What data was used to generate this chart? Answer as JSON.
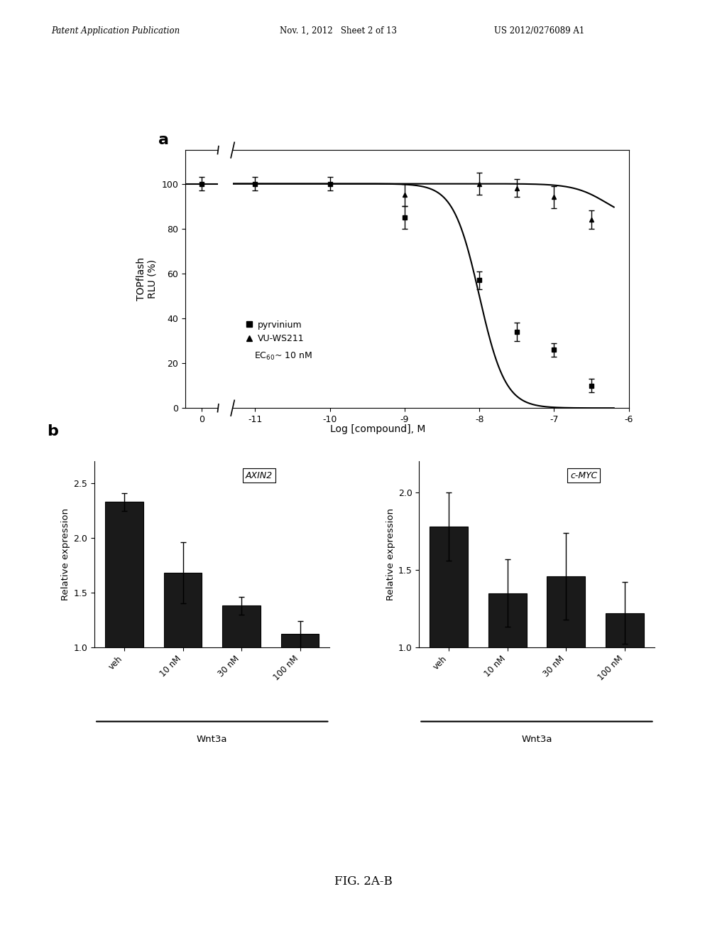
{
  "header_left": "Patent Application Publication",
  "header_mid": "Nov. 1, 2012   Sheet 2 of 13",
  "header_right": "US 2012/0276089 A1",
  "footer": "FIG. 2A-B",
  "panel_a_label": "a",
  "panel_b_label": "b",
  "pyrvinium_x": [
    -11,
    -10,
    -9,
    -8,
    -7.5,
    -7,
    -6.5
  ],
  "pyrvinium_y": [
    100,
    100,
    85,
    57,
    34,
    26,
    10
  ],
  "pyrvinium_yerr": [
    3,
    3,
    5,
    4,
    4,
    3,
    3
  ],
  "vuwS211_x": [
    -9,
    -8,
    -7.5,
    -7,
    -6.5
  ],
  "vuwS211_y": [
    95,
    100,
    98,
    94,
    84
  ],
  "vuwS211_yerr": [
    5,
    5,
    4,
    5,
    4
  ],
  "pyrvinium_ec50_log": -8.0,
  "pyrvinium_hill": 2.5,
  "topflash_ylabel": "TOPflash\nRLU (%)",
  "topflash_xlabel": "Log [compound], M",
  "topflash_yticks": [
    0,
    20,
    40,
    60,
    80,
    100
  ],
  "legend_pyrvinium": "pyrvinium",
  "legend_vuwS211": "VU-WS211",
  "legend_ec50": "EC$_{60}$~ 10 nM",
  "axin2_categories": [
    "veh",
    "10 nM",
    "30 nM",
    "100 nM"
  ],
  "axin2_values": [
    2.33,
    1.68,
    1.38,
    1.12
  ],
  "axin2_yerr": [
    0.08,
    0.28,
    0.08,
    0.12
  ],
  "axin2_ylabel": "Relative expression",
  "axin2_ylim": [
    1.0,
    2.7
  ],
  "axin2_yticks": [
    1.0,
    1.5,
    2.0,
    2.5
  ],
  "axin2_label": "AXIN2",
  "axin2_xlabel": "Wnt3a",
  "cmyc_categories": [
    "veh",
    "10 nM",
    "30 nM",
    "100 nM"
  ],
  "cmyc_values": [
    1.78,
    1.35,
    1.46,
    1.22
  ],
  "cmyc_yerr": [
    0.22,
    0.22,
    0.28,
    0.2
  ],
  "cmyc_ylabel": "Relative expression",
  "cmyc_ylim": [
    1.0,
    2.2
  ],
  "cmyc_yticks": [
    1.0,
    1.5,
    2.0
  ],
  "cmyc_label": "c-MYC",
  "cmyc_xlabel": "Wnt3a",
  "bar_color": "#1a1a1a",
  "bg_color": "#ffffff",
  "text_color": "#000000"
}
